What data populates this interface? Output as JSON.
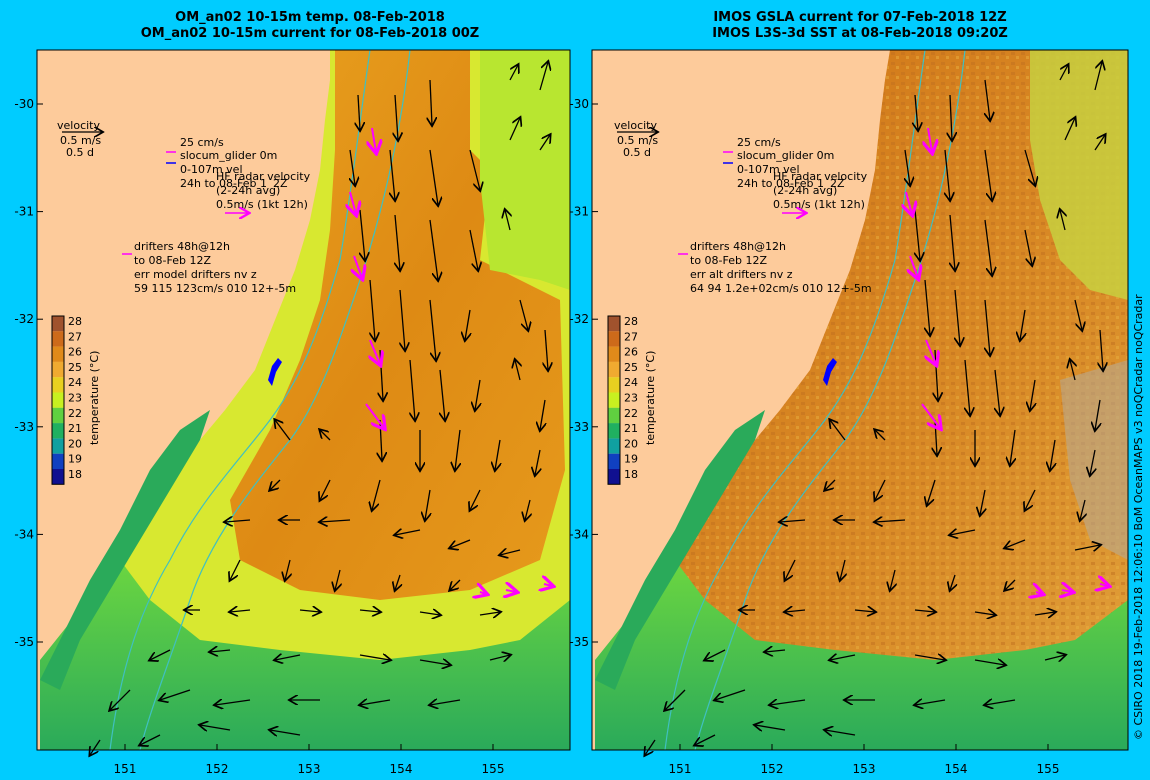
{
  "left_panel": {
    "title_line1": "OM_an02 10-15m temp. 08-Feb-2018",
    "title_line2": "OM_an02 10-15m current for 08-Feb-2018 00Z",
    "legend": {
      "velocity_label": "velocity",
      "velocity_scale": "0.5 m/s",
      "velocity_time": "0.5 d",
      "glider_scale": "25 cm/s",
      "glider_name": "slocum_glider 0m",
      "glider_depth": "0-107m vel",
      "glider_period": "24h to 08-Feb 1",
      "hf_radar_label": "HF radar velocity",
      "hf_radar_avg": "(2-24h avg)",
      "hf_radar_period": "2Z",
      "hf_radar_scale": "0.5m/s (1kt 12h)",
      "drifters_line1": "drifters 48h@12h",
      "drifters_line2": "to 08-Feb 12Z",
      "drifters_line3": "err model drifters nv z",
      "drifters_line4": "59 115 123cm/s 010 12+-5m"
    }
  },
  "right_panel": {
    "title_line1": "IMOS GSLA current for 07-Feb-2018 12Z",
    "title_line2": "IMOS L3S-3d SST at 08-Feb-2018 09:20Z",
    "legend": {
      "velocity_label": "velocity",
      "velocity_scale": "0.5 m/s",
      "velocity_time": "0.5 d",
      "glider_scale": "25 cm/s",
      "glider_name": "slocum_glider 0m",
      "glider_depth": "0-107m vel",
      "glider_period": "24h to 08-Feb 1",
      "hf_radar_label": "HF radar velocity",
      "hf_radar_avg": "(2-24h avg)",
      "hf_radar_period": "2Z",
      "hf_radar_scale": "0.5m/s (1kt 12h)",
      "drifters_line1": "drifters 48h@12h",
      "drifters_line2": "to 08-Feb 12Z",
      "drifters_line3": "err alt drifters nv z",
      "drifters_line4": "64 94 1.2e+02cm/s 010 12+-5m"
    }
  },
  "axes": {
    "lon_ticks": [
      "151",
      "152",
      "153",
      "154",
      "155"
    ],
    "lat_ticks": [
      "-30",
      "-31",
      "-32",
      "-33",
      "-34",
      "-35"
    ]
  },
  "colorbar": {
    "label": "temperature (°C)",
    "ticks": [
      "28",
      "27",
      "26",
      "25",
      "24",
      "23",
      "22",
      "21",
      "20",
      "19",
      "18"
    ],
    "colors": [
      "#a0522d",
      "#cd6a1a",
      "#e08a1a",
      "#f0aa30",
      "#e8d020",
      "#c8f020",
      "#60d040",
      "#20b060",
      "#10a0a0",
      "#1040c0",
      "#101090"
    ]
  },
  "credit": "© CSIRO 2018  19-Feb-2018 12:06:10 BoM OceanMAPS v3 noQCradar noQCradar",
  "colors": {
    "background": "#00ccff",
    "land": "#fdcb9b",
    "velocity_arrow": "#000000",
    "drifter": "#ff00ff",
    "glider": "#0000ff",
    "isobath": "#40c0c0"
  },
  "icons": {
    "drifter_marker": "magenta-arrow",
    "glider_marker": "blue-arrow"
  }
}
